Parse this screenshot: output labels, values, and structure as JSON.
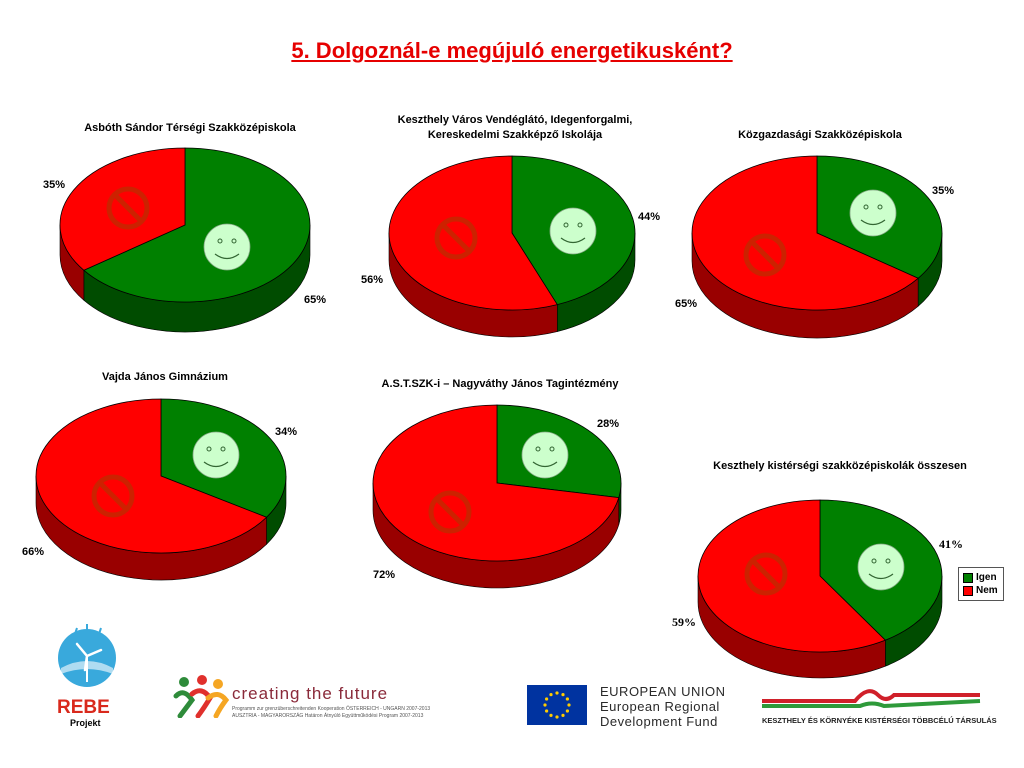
{
  "page": {
    "title": "5. Dolgoznál-e megújuló energetikusként?"
  },
  "colors": {
    "yes": "#008000",
    "yes_dark": "#004c00",
    "no": "#ff0000",
    "no_dark": "#990000",
    "smiley": "#ccffcc",
    "no_sign": "#cc2200"
  },
  "chart_data": [
    {
      "type": "pie",
      "title": "Asbóth Sándor Térségi Szakközépiskola",
      "series": [
        {
          "values": [
            65,
            35
          ]
        }
      ],
      "labels": [
        "65%",
        "35%"
      ]
    },
    {
      "type": "pie",
      "title": "Keszthely Város Vendéglátó, Idegenforgalmi, Kereskedelmi Szakképző Iskolája",
      "title_lines": [
        "Keszthely Város Vendéglátó, Idegenforgalmi,",
        "Kereskedelmi Szakképző Iskolája"
      ],
      "series": [
        {
          "values": [
            44,
            56
          ]
        }
      ],
      "labels": [
        "44%",
        "56%"
      ]
    },
    {
      "type": "pie",
      "title": "Közgazdasági Szakközépiskola",
      "series": [
        {
          "values": [
            35,
            65
          ]
        }
      ],
      "labels": [
        "35%",
        "65%"
      ]
    },
    {
      "type": "pie",
      "title": "Vajda János Gimnázium",
      "series": [
        {
          "values": [
            34,
            66
          ]
        }
      ],
      "labels": [
        "34%",
        "66%"
      ]
    },
    {
      "type": "pie",
      "title": "A.S.T.SZK-i – Nagyváthy János Tagintézmény",
      "series": [
        {
          "values": [
            28,
            72
          ]
        }
      ],
      "labels": [
        "28%",
        "72%"
      ]
    },
    {
      "type": "pie",
      "title": "Keszthely kistérségi szakközépiskolák összesen",
      "series": [
        {
          "values": [
            41,
            59
          ]
        }
      ],
      "labels": [
        "41%",
        "59%"
      ],
      "legend": {
        "position": "right",
        "entries": [
          "Igen",
          "Nem"
        ]
      }
    }
  ],
  "footer": {
    "rebe_name": "REBE",
    "rebe_sub": "Projekt",
    "ctf_slogan": "creating the future",
    "ctf_line1": "Programm zur grenzüberschreitenden Kooperation ÖSTERREICH - UNGARN 2007-2013",
    "ctf_line2": "AUSZTRIA - MAGYARORSZÁG Határon Átnyúló Együttműködési Program 2007-2013",
    "eu_line1": "EUROPEAN UNION",
    "eu_line2": "European Regional",
    "eu_line3": "Development Fund",
    "assoc_name": "KESZTHELY ÉS KÖRNYÉKE KISTÉRSÉGI TÖBBCÉLÚ TÁRSULÁS"
  }
}
